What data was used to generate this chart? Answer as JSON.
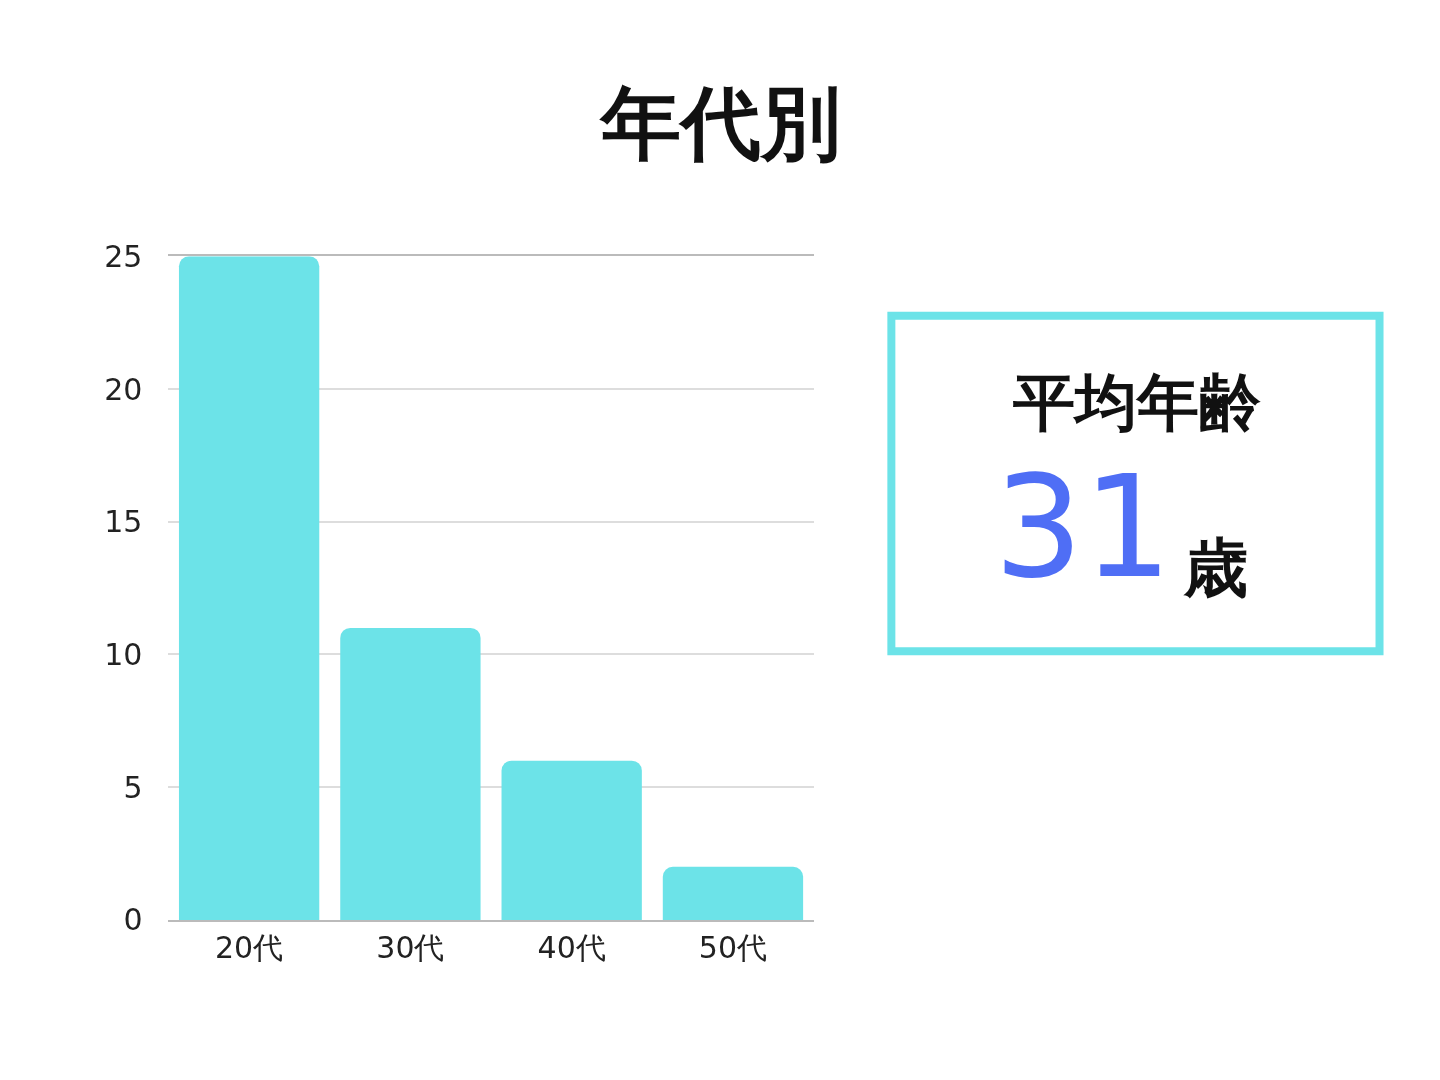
{
  "chart_data": [
    {
      "type": "bar",
      "title": "年代別",
      "categories": [
        "20代",
        "30代",
        "40代",
        "50代"
      ],
      "values": [
        25,
        11,
        6,
        2
      ],
      "color": "#6ce3e8",
      "ylim": [
        0,
        25
      ],
      "yticks": [
        0,
        5,
        10,
        15,
        20,
        25
      ],
      "grid": "y"
    },
    {
      "type": "other",
      "title": "平均年齢",
      "annotations": [
        "31",
        "歳"
      ],
      "color": "#6ce3e8",
      "colors": [
        "#4f6ef5",
        "#111111"
      ]
    }
  ]
}
